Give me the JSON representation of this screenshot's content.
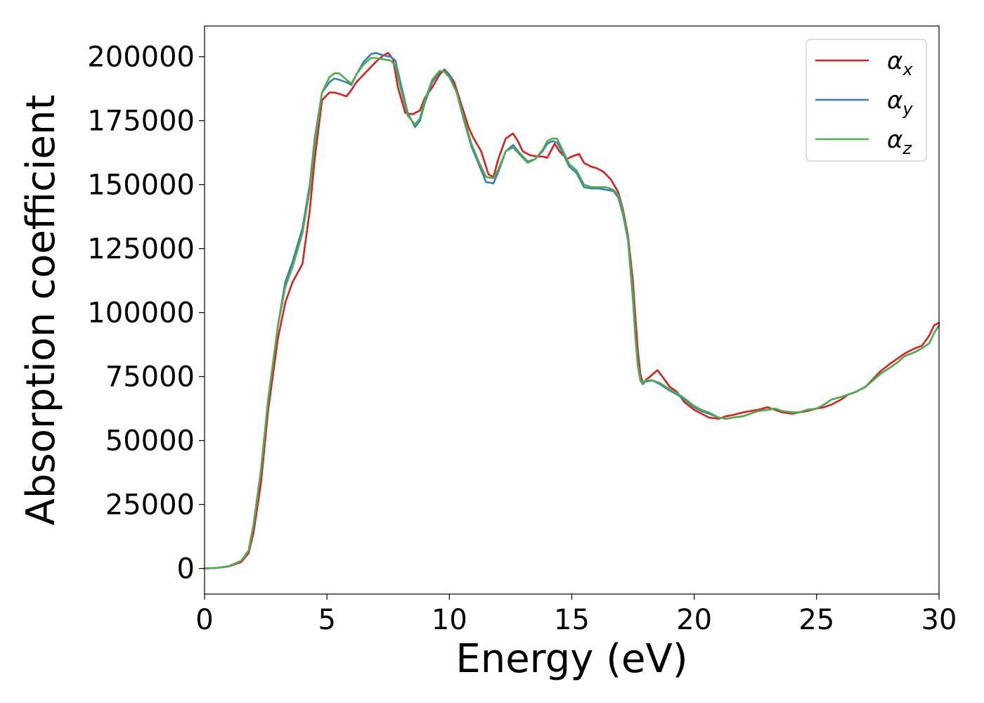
{
  "chart_data": {
    "type": "line",
    "xlabel": "Energy (eV)",
    "ylabel": "Absorption coefficient",
    "xlim": [
      0,
      30
    ],
    "ylim": [
      -10000,
      212000
    ],
    "xticks": [
      0,
      5,
      10,
      15,
      20,
      25,
      30
    ],
    "yticks": [
      0,
      25000,
      50000,
      75000,
      100000,
      125000,
      150000,
      175000,
      200000
    ],
    "grid": false,
    "legend_position": "top-right",
    "series": [
      {
        "name": "αx",
        "label_main": "α",
        "label_sub": "x",
        "color": "#e41a1c",
        "x": [
          0,
          0.5,
          1,
          1.5,
          1.8,
          2,
          2.3,
          2.6,
          3,
          3.3,
          3.6,
          4,
          4.3,
          4.5,
          4.8,
          5.1,
          5.3,
          5.5,
          5.8,
          6,
          6.2,
          6.5,
          7,
          7.3,
          7.5,
          7.7,
          7.9,
          8.2,
          8.5,
          8.8,
          9,
          9.3,
          9.6,
          9.8,
          10,
          10.2,
          10.5,
          10.8,
          11,
          11.3,
          11.6,
          11.8,
          12,
          12.3,
          12.6,
          12.8,
          13,
          13.3,
          13.6,
          13.8,
          14,
          14.3,
          14.5,
          14.8,
          15,
          15.3,
          15.5,
          15.8,
          16,
          16.3,
          16.6,
          16.9,
          17.1,
          17.3,
          17.5,
          17.6,
          17.7,
          17.8,
          17.9,
          18,
          18.2,
          18.5,
          18.7,
          19,
          19.3,
          19.6,
          20,
          20.3,
          20.6,
          21,
          21.3,
          21.6,
          22,
          22.3,
          22.6,
          23,
          23.3,
          23.6,
          24,
          24.3,
          24.6,
          25,
          25.3,
          25.6,
          26,
          26.3,
          26.6,
          27,
          27.3,
          27.6,
          28,
          28.3,
          28.6,
          29,
          29.3,
          29.6,
          29.8,
          30
        ],
        "y": [
          0,
          200,
          800,
          2500,
          6000,
          14000,
          33000,
          62000,
          90000,
          104000,
          112000,
          119000,
          140000,
          160000,
          183000,
          186000,
          186000,
          185500,
          184500,
          187000,
          190000,
          193000,
          198000,
          200500,
          201500,
          199000,
          188000,
          178000,
          177500,
          179000,
          184000,
          188000,
          193000,
          195000,
          193000,
          190000,
          181000,
          172000,
          168000,
          163000,
          154000,
          153000,
          160000,
          168000,
          170000,
          167000,
          163000,
          161500,
          161000,
          161000,
          160500,
          166000,
          163000,
          160000,
          161000,
          162000,
          158500,
          157000,
          156500,
          155000,
          152000,
          147000,
          140000,
          130000,
          112000,
          98000,
          85000,
          76000,
          72500,
          73500,
          75000,
          77500,
          75000,
          71000,
          69000,
          65000,
          62000,
          60500,
          59000,
          58500,
          59500,
          60000,
          61000,
          61500,
          62000,
          63000,
          62000,
          61000,
          60500,
          61000,
          61500,
          62500,
          63000,
          64000,
          66000,
          68000,
          69000,
          71000,
          74000,
          77000,
          80000,
          82000,
          84000,
          86000,
          87000,
          91000,
          95000,
          96000
        ]
      },
      {
        "name": "αy",
        "label_main": "α",
        "label_sub": "y",
        "color": "#377eb8",
        "x": [
          0,
          0.5,
          1,
          1.5,
          1.8,
          2,
          2.3,
          2.6,
          3,
          3.3,
          3.6,
          4,
          4.3,
          4.5,
          4.8,
          5.1,
          5.3,
          5.5,
          5.8,
          6,
          6.2,
          6.5,
          6.8,
          7,
          7.3,
          7.6,
          7.8,
          8,
          8.3,
          8.6,
          8.8,
          9,
          9.3,
          9.6,
          9.8,
          10,
          10.3,
          10.6,
          10.9,
          11.2,
          11.5,
          11.8,
          12,
          12.3,
          12.6,
          12.9,
          13.2,
          13.5,
          13.8,
          14,
          14.2,
          14.4,
          14.6,
          14.9,
          15.2,
          15.5,
          15.8,
          16.1,
          16.4,
          16.7,
          16.9,
          17.1,
          17.3,
          17.5,
          17.6,
          17.7,
          17.8,
          17.9,
          18,
          18.3,
          18.6,
          19,
          19.3,
          19.6,
          20,
          20.3,
          20.6,
          21,
          21.3,
          21.6,
          22,
          22.3,
          22.6,
          23,
          23.3,
          23.6,
          24,
          24.3,
          24.6,
          25,
          25.3,
          25.6,
          26,
          26.3,
          26.6,
          27,
          27.3,
          27.6,
          28,
          28.3,
          28.6,
          29,
          29.3,
          29.6,
          29.8,
          30
        ],
        "y": [
          0,
          200,
          900,
          3000,
          7000,
          17000,
          38000,
          66000,
          95000,
          112000,
          120000,
          133000,
          150000,
          168000,
          186000,
          190000,
          191500,
          191000,
          190000,
          189000,
          193000,
          198000,
          201000,
          201500,
          200500,
          200000,
          198500,
          190000,
          178000,
          172500,
          175000,
          182000,
          190000,
          194000,
          194500,
          193000,
          186000,
          175000,
          165000,
          158000,
          151000,
          150500,
          155000,
          163000,
          165500,
          162000,
          159000,
          160000,
          163000,
          166000,
          167000,
          166500,
          163000,
          157000,
          154500,
          149000,
          148500,
          148500,
          148000,
          147500,
          145000,
          138000,
          128000,
          105000,
          90000,
          79000,
          73500,
          72000,
          73000,
          73500,
          72000,
          69500,
          68000,
          66000,
          63000,
          61500,
          60500,
          59000,
          58500,
          59000,
          59500,
          60500,
          61500,
          62000,
          62500,
          61500,
          61000,
          61000,
          62000,
          62500,
          64000,
          66000,
          67000,
          68000,
          69000,
          71000,
          73500,
          76000,
          78500,
          80500,
          83000,
          84500,
          86000,
          88000,
          92000,
          95000
        ]
      },
      {
        "name": "αz",
        "label_main": "α",
        "label_sub": "z",
        "color": "#4daf4a",
        "x": [
          0,
          0.5,
          1,
          1.5,
          1.8,
          2,
          2.3,
          2.6,
          3,
          3.3,
          3.6,
          4,
          4.3,
          4.5,
          4.8,
          5.1,
          5.3,
          5.5,
          5.8,
          6,
          6.2,
          6.5,
          6.8,
          7,
          7.3,
          7.6,
          7.8,
          8,
          8.3,
          8.6,
          8.8,
          9,
          9.3,
          9.6,
          9.8,
          10,
          10.3,
          10.6,
          10.9,
          11.2,
          11.5,
          11.8,
          12,
          12.3,
          12.6,
          12.9,
          13.2,
          13.5,
          13.8,
          14,
          14.2,
          14.4,
          14.6,
          14.9,
          15.2,
          15.5,
          15.8,
          16.1,
          16.4,
          16.7,
          16.9,
          17.1,
          17.3,
          17.5,
          17.6,
          17.7,
          17.8,
          17.9,
          18,
          18.3,
          18.6,
          19,
          19.3,
          19.6,
          20,
          20.3,
          20.6,
          21,
          21.3,
          21.6,
          22,
          22.3,
          22.6,
          23,
          23.3,
          23.6,
          24,
          24.3,
          24.6,
          25,
          25.3,
          25.6,
          26,
          26.3,
          26.6,
          27,
          27.3,
          27.6,
          28,
          28.3,
          28.6,
          29,
          29.3,
          29.6,
          29.8,
          30
        ],
        "y": [
          0,
          200,
          900,
          3000,
          7000,
          17000,
          38000,
          66000,
          95000,
          110000,
          118000,
          131000,
          148000,
          166000,
          186000,
          192000,
          193500,
          193500,
          191000,
          189500,
          193000,
          197000,
          199500,
          199500,
          199000,
          198500,
          196500,
          188000,
          177000,
          173500,
          176000,
          183000,
          191000,
          194500,
          194000,
          192000,
          186000,
          176000,
          166000,
          159000,
          153000,
          152500,
          156000,
          163000,
          164500,
          161500,
          158500,
          160000,
          163500,
          167000,
          168000,
          168000,
          164000,
          158000,
          155500,
          150000,
          149000,
          149000,
          149000,
          148000,
          146000,
          139000,
          129000,
          107000,
          91000,
          80000,
          74000,
          72500,
          73500,
          73500,
          72500,
          70000,
          68500,
          66500,
          63500,
          62000,
          61000,
          59000,
          58500,
          59000,
          59500,
          60500,
          61500,
          62000,
          62500,
          61500,
          61000,
          61000,
          62000,
          62500,
          64000,
          66000,
          67000,
          68000,
          69000,
          71000,
          73500,
          76000,
          78500,
          80500,
          83000,
          84500,
          86000,
          88000,
          92000,
          95000
        ]
      }
    ]
  }
}
